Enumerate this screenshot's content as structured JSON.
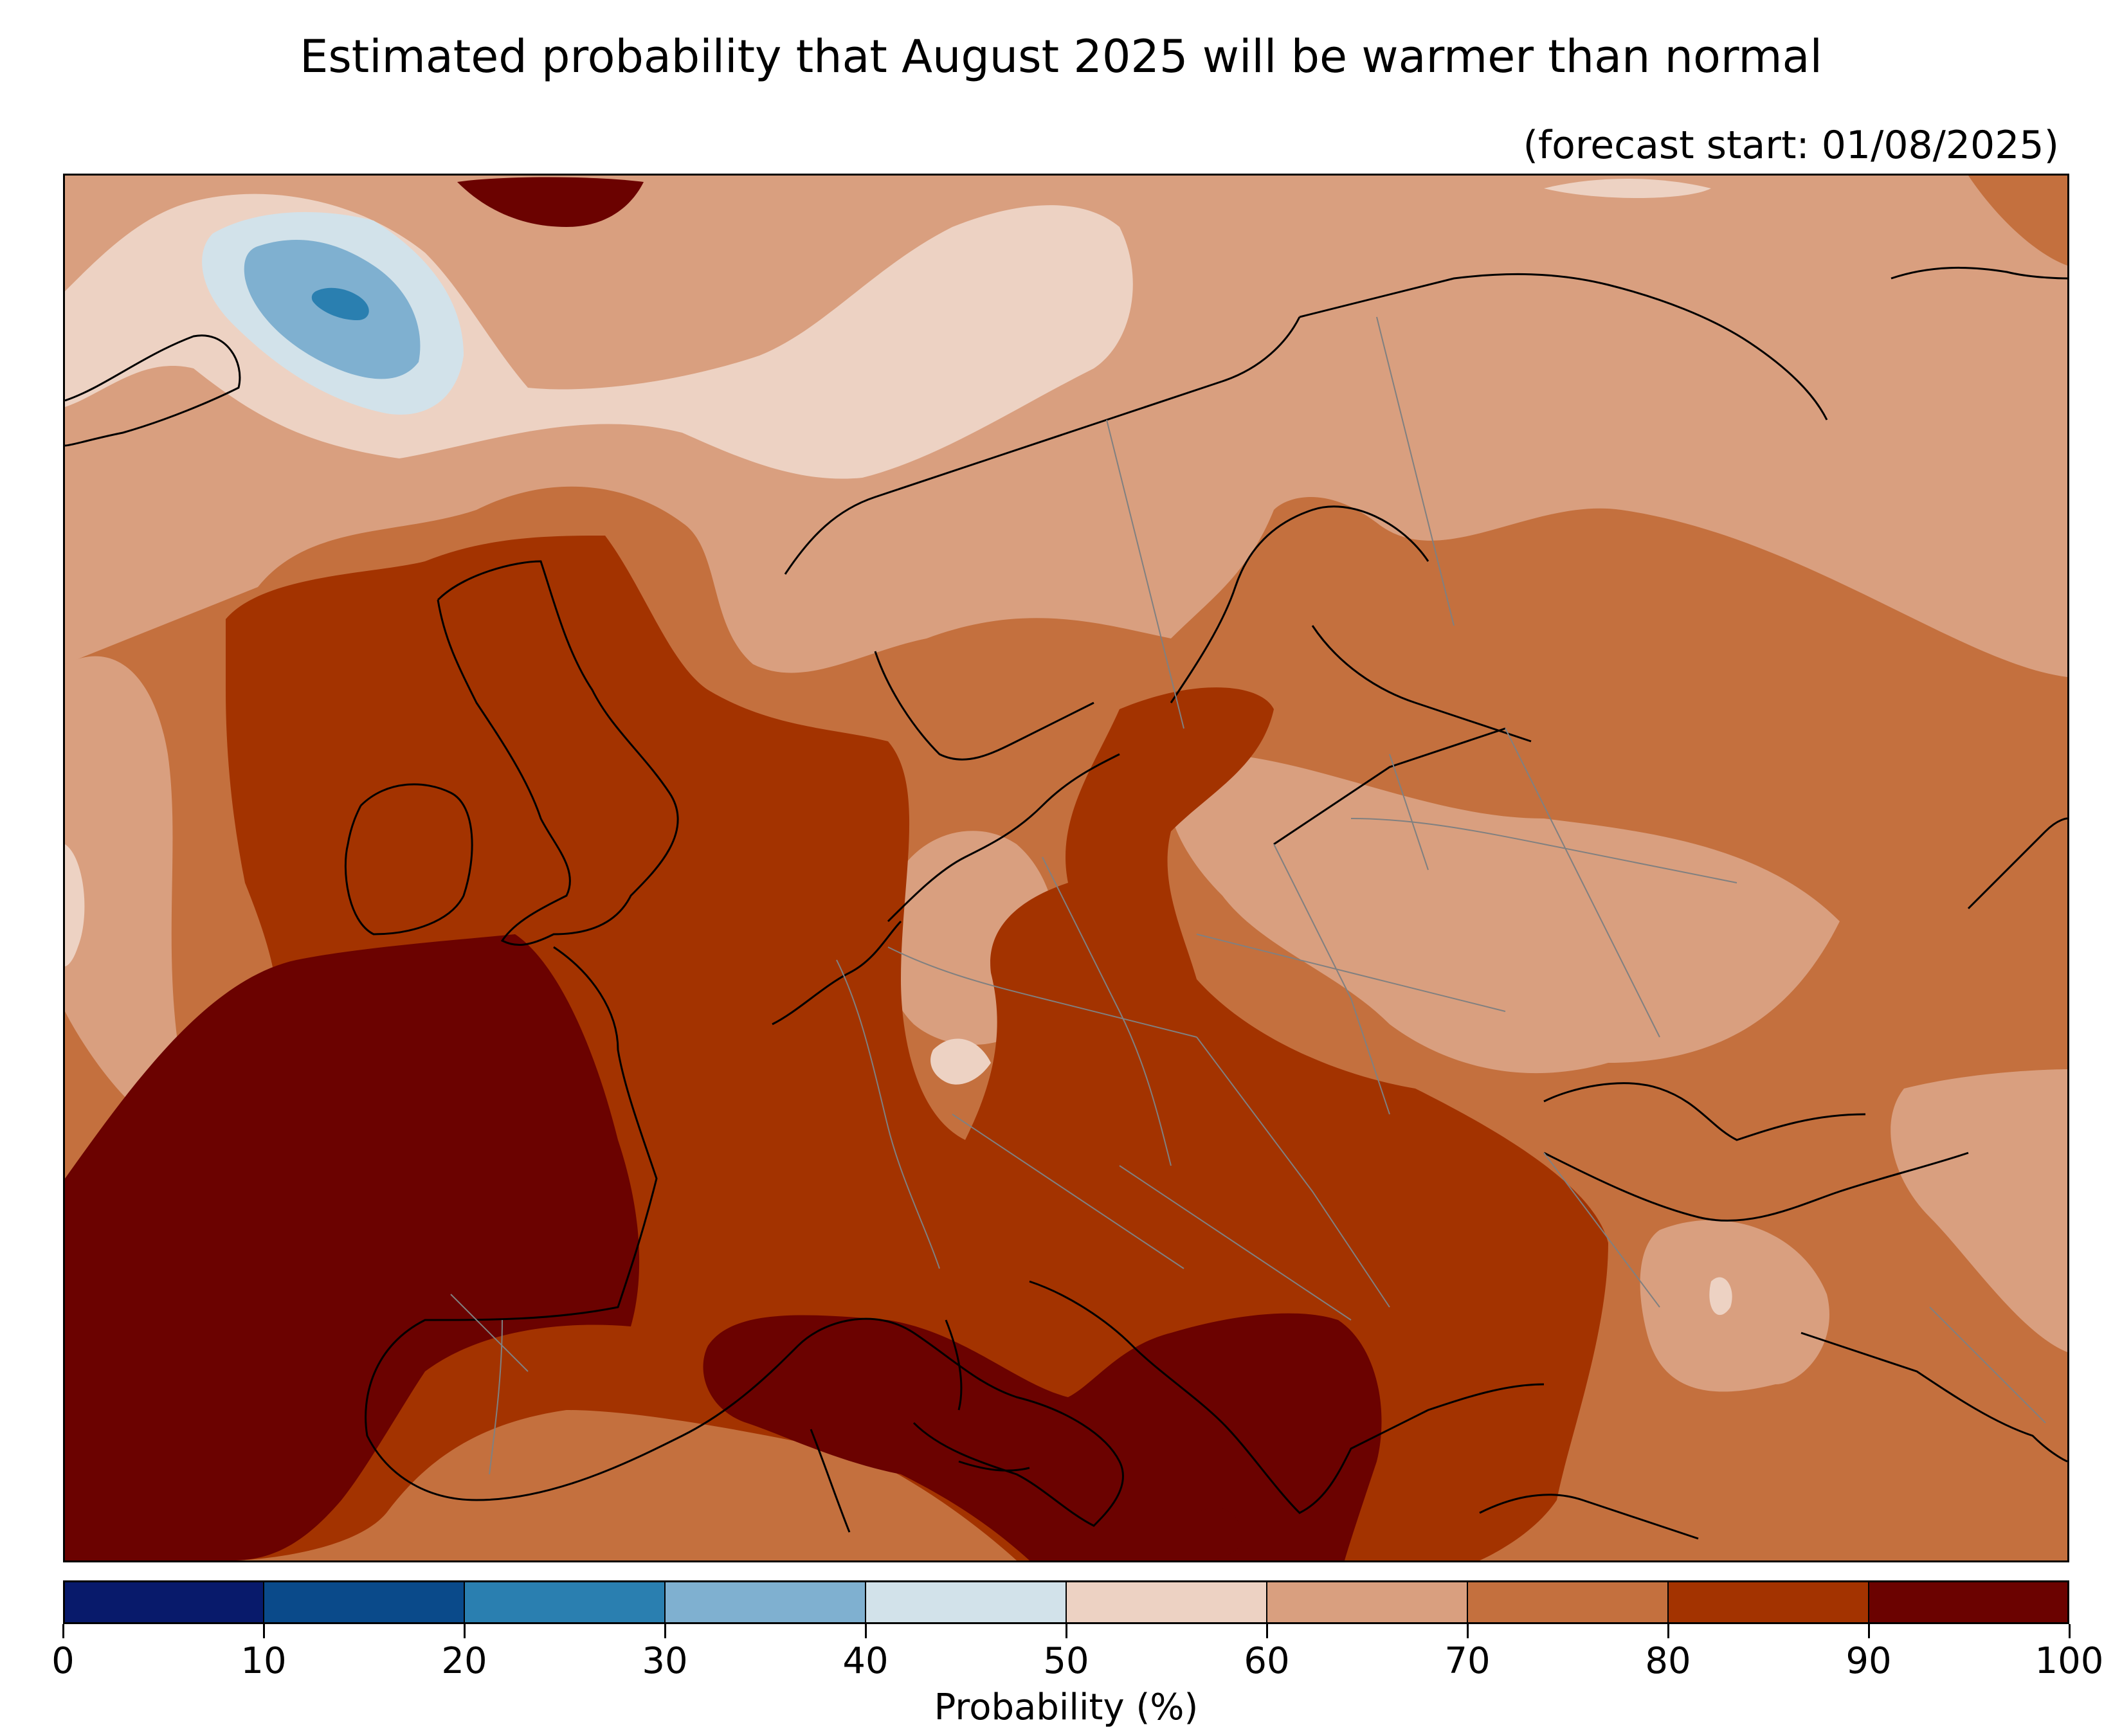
{
  "title": "Estimated probability that August 2025 will be warmer than normal",
  "subtitle": "(forecast start: 01/08/2025)",
  "colorbar": {
    "label": "Probability (%)",
    "ticks": [
      "0",
      "10",
      "20",
      "30",
      "40",
      "50",
      "60",
      "70",
      "80",
      "90",
      "100"
    ],
    "bins": [
      {
        "range": "0-10",
        "color": "#081a6b"
      },
      {
        "range": "10-20",
        "color": "#0a4a8a"
      },
      {
        "range": "20-30",
        "color": "#2a7fb0"
      },
      {
        "range": "30-40",
        "color": "#7fb0d0"
      },
      {
        "range": "40-50",
        "color": "#d2e2ea"
      },
      {
        "range": "50-60",
        "color": "#edd2c3"
      },
      {
        "range": "60-70",
        "color": "#d99f7f"
      },
      {
        "range": "70-80",
        "color": "#c4703e"
      },
      {
        "range": "80-90",
        "color": "#a33300"
      },
      {
        "range": "90-100",
        "color": "#6b0200"
      }
    ]
  },
  "map": {
    "region": "Europe",
    "variable": "probability warmer than normal",
    "features": [
      "coastlines",
      "country-borders"
    ]
  }
}
